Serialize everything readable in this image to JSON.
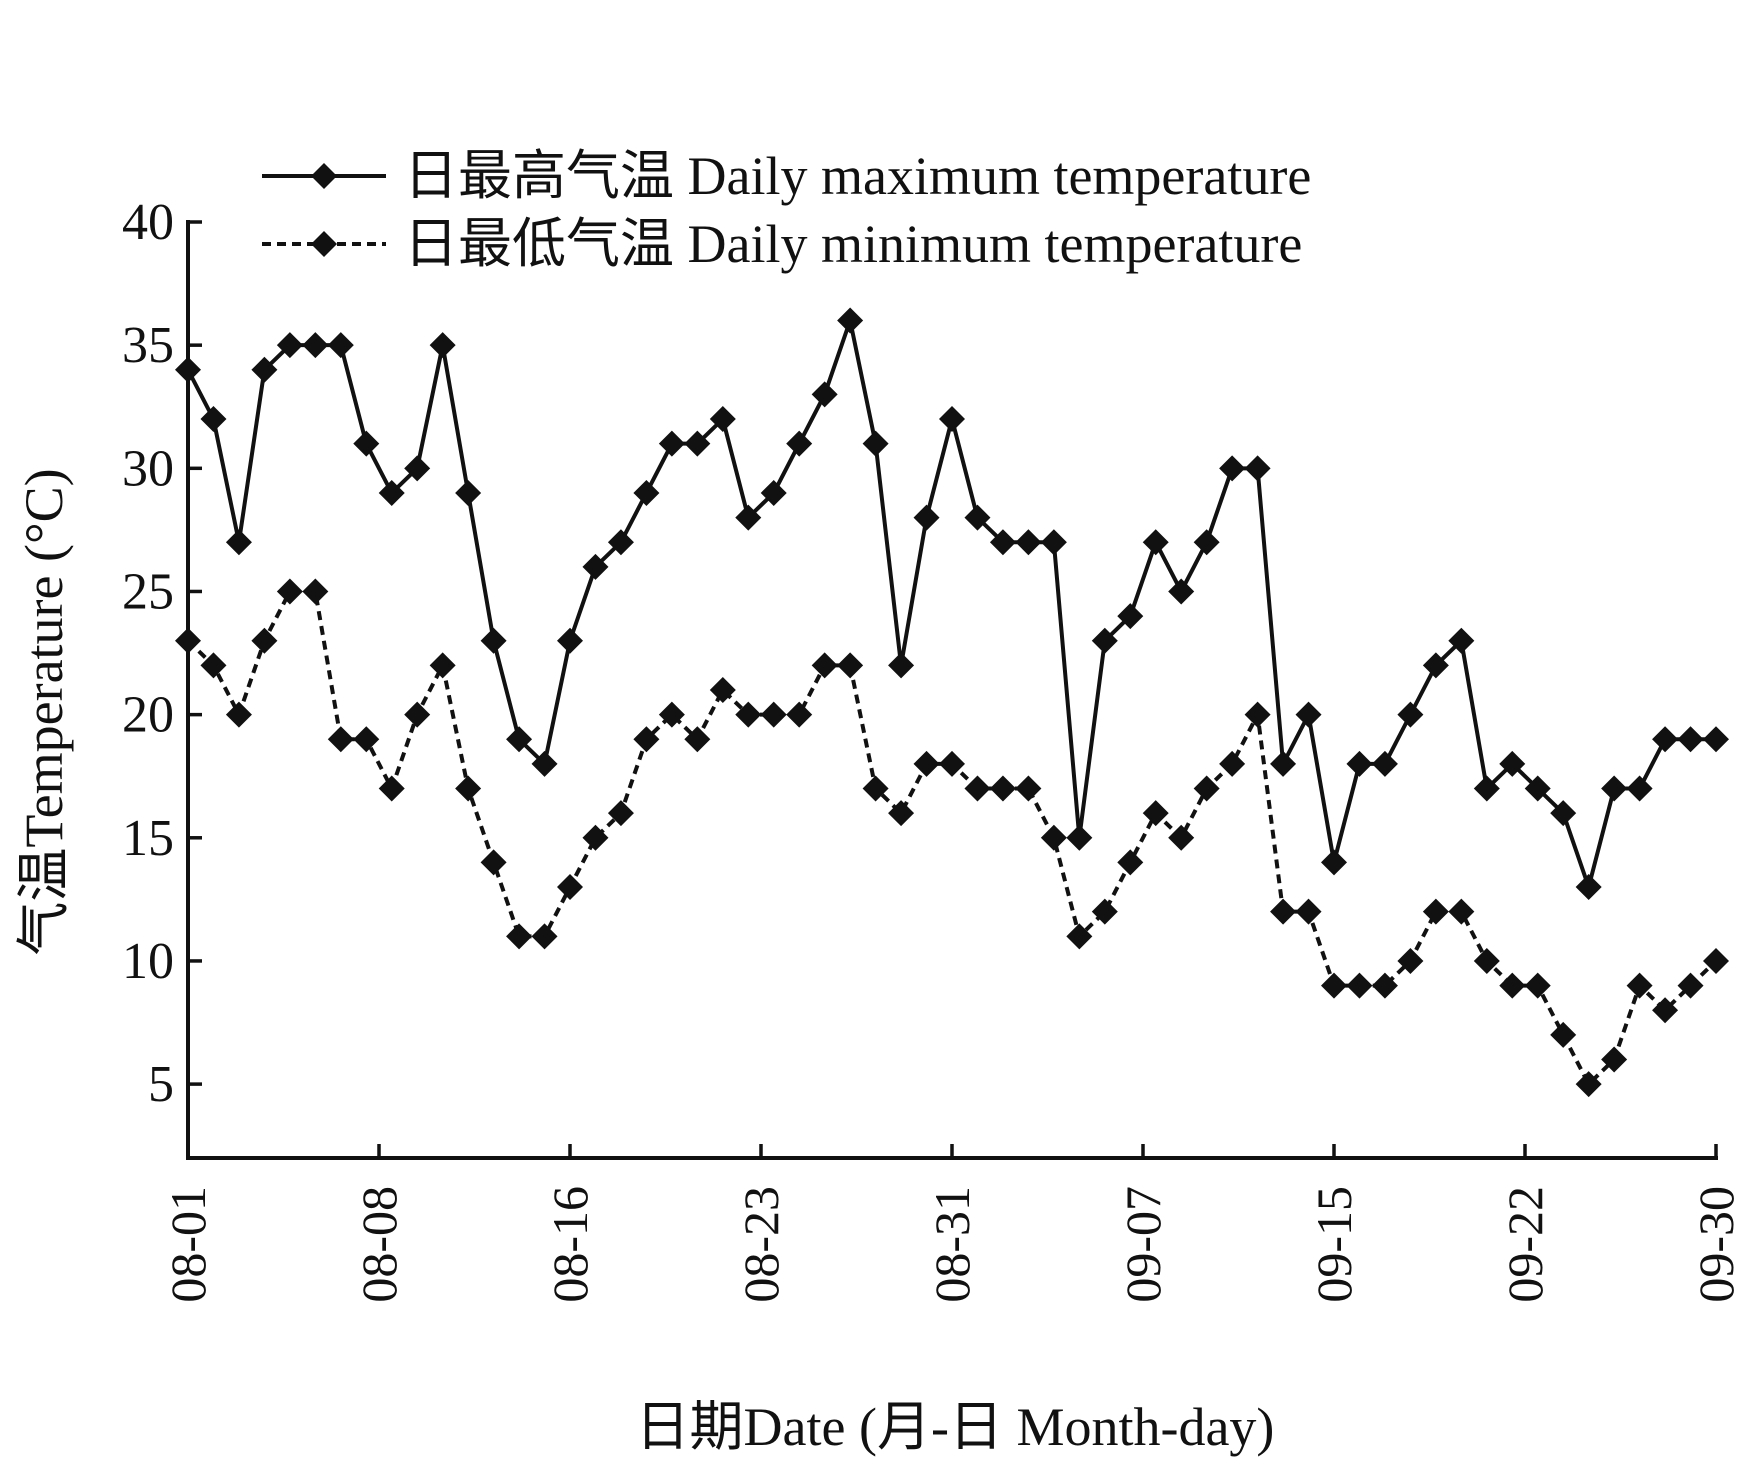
{
  "chart_data": {
    "type": "line",
    "xlabel": "日期Date (月-日 Month-day)",
    "ylabel": "气温Temperature (°C)",
    "ylim": [
      2,
      40
    ],
    "yticks": [
      5,
      10,
      15,
      20,
      25,
      30,
      35,
      40
    ],
    "grid": false,
    "legend_position": "top",
    "x": [
      "08-01",
      "08-02",
      "08-03",
      "08-04",
      "08-05",
      "08-06",
      "08-07",
      "08-08",
      "08-09",
      "08-10",
      "08-11",
      "08-12",
      "08-13",
      "08-14",
      "08-15",
      "08-16",
      "08-17",
      "08-18",
      "08-19",
      "08-20",
      "08-21",
      "08-22",
      "08-23",
      "08-24",
      "08-25",
      "08-26",
      "08-27",
      "08-28",
      "08-29",
      "08-30",
      "08-31",
      "09-01",
      "09-02",
      "09-03",
      "09-04",
      "09-05",
      "09-06",
      "09-07",
      "09-08",
      "09-09",
      "09-10",
      "09-11",
      "09-12",
      "09-13",
      "09-14",
      "09-15",
      "09-16",
      "09-17",
      "09-18",
      "09-19",
      "09-20",
      "09-21",
      "09-22",
      "09-23",
      "09-24",
      "09-25",
      "09-26",
      "09-27",
      "09-28",
      "09-29",
      "09-30"
    ],
    "xtick_labels": [
      "08-01",
      "08-08",
      "08-16",
      "08-23",
      "08-31",
      "09-07",
      "09-15",
      "09-22",
      "09-30"
    ],
    "xtick_indices": [
      0,
      7.5,
      15,
      22.5,
      30,
      37.5,
      45,
      52.5,
      60
    ],
    "series": [
      {
        "name": "日最高气温 Daily maximum temperature",
        "style": "solid",
        "values": [
          34,
          32,
          27,
          34,
          35,
          35,
          35,
          31,
          29,
          30,
          35,
          29,
          23,
          19,
          18,
          23,
          26,
          27,
          29,
          31,
          31,
          32,
          28,
          29,
          31,
          33,
          36,
          31,
          22,
          28,
          32,
          28,
          27,
          27,
          27,
          15,
          23,
          24,
          27,
          25,
          27,
          30,
          30,
          18,
          20,
          14,
          18,
          18,
          20,
          22,
          23,
          17,
          18,
          17,
          16,
          13,
          17,
          17,
          19,
          19,
          19
        ]
      },
      {
        "name": "日最低气温 Daily minimum temperature",
        "style": "dashed",
        "values": [
          23,
          22,
          20,
          23,
          25,
          25,
          19,
          19,
          17,
          20,
          22,
          17,
          14,
          11,
          11,
          13,
          15,
          16,
          19,
          20,
          19,
          21,
          20,
          20,
          20,
          22,
          22,
          17,
          16,
          18,
          18,
          17,
          17,
          17,
          15,
          11,
          12,
          14,
          16,
          15,
          17,
          18,
          20,
          12,
          12,
          9,
          9,
          9,
          10,
          12,
          12,
          10,
          9,
          9,
          7,
          5,
          6,
          9,
          8,
          9,
          10
        ]
      }
    ]
  },
  "colors": {
    "line": "#111111",
    "background": "#ffffff"
  }
}
